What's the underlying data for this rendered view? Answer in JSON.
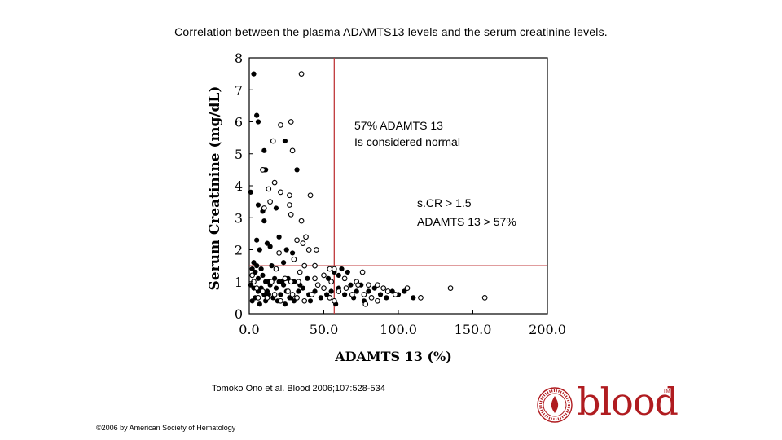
{
  "slide": {
    "title": "Correlation between the plasma ADAMTS13 levels and the serum creatinine levels.",
    "citation": "Tomoko Ono et al. Blood 2006;107:528-534",
    "copyright": "©2006 by American Society of Hematology",
    "logo_text": "blood",
    "logo_tm": "TM"
  },
  "chart_data": {
    "type": "scatter",
    "title": "",
    "xlabel": "ADAMTS 13 (%)",
    "ylabel": "Serum Creatinine (mg/dL)",
    "xlim": [
      0,
      200
    ],
    "ylim": [
      0,
      8
    ],
    "xticks": [
      "0.0",
      "50.0",
      "100.0",
      "150.0",
      "200.0"
    ],
    "yticks": [
      "0",
      "1",
      "2",
      "3",
      "4",
      "5",
      "6",
      "7",
      "8"
    ],
    "grid": false,
    "reference_lines": {
      "x": 57,
      "y": 1.5,
      "color": "#c0393b"
    },
    "annotations": [
      {
        "id": "normal",
        "lines": [
          "57% ADAMTS 13",
          "Is considered normal"
        ]
      },
      {
        "id": "quadrant",
        "lines": [
          "s.CR > 1.5",
          "ADAMTS 13 > 57%"
        ]
      }
    ],
    "series": [
      {
        "marker": "filled-circle",
        "points": [
          [
            3,
            7.5
          ],
          [
            5,
            6.2
          ],
          [
            6,
            6
          ],
          [
            10,
            5.1
          ],
          [
            10,
            4.5
          ],
          [
            11,
            4.5
          ],
          [
            24,
            5.4
          ],
          [
            32,
            4.5
          ],
          [
            1,
            3.8
          ],
          [
            6,
            3.4
          ],
          [
            9,
            3.2
          ],
          [
            10,
            2.9
          ],
          [
            18,
            3.3
          ],
          [
            20,
            2.4
          ],
          [
            5,
            2.3
          ],
          [
            7,
            2.0
          ],
          [
            12,
            2.2
          ],
          [
            14,
            2.1
          ],
          [
            25,
            2.0
          ],
          [
            29,
            1.9
          ],
          [
            3,
            1.6
          ],
          [
            5,
            1.5
          ],
          [
            8,
            1.4
          ],
          [
            15,
            1.5
          ],
          [
            23,
            1.6
          ],
          [
            2,
            1.4
          ],
          [
            4,
            1.3
          ],
          [
            6,
            1.1
          ],
          [
            9,
            1.2
          ],
          [
            11,
            1.0
          ],
          [
            13,
            1.0
          ],
          [
            17,
            1.1
          ],
          [
            20,
            1.0
          ],
          [
            22,
            1.0
          ],
          [
            26,
            1.1
          ],
          [
            30,
            1.0
          ],
          [
            34,
            0.9
          ],
          [
            39,
            1.1
          ],
          [
            1,
            0.9
          ],
          [
            3,
            0.8
          ],
          [
            6,
            0.7
          ],
          [
            8,
            0.8
          ],
          [
            10,
            0.6
          ],
          [
            12,
            0.7
          ],
          [
            14,
            0.9
          ],
          [
            16,
            0.5
          ],
          [
            18,
            0.8
          ],
          [
            21,
            0.6
          ],
          [
            23,
            0.9
          ],
          [
            25,
            0.7
          ],
          [
            27,
            0.5
          ],
          [
            30,
            0.4
          ],
          [
            33,
            0.7
          ],
          [
            36,
            0.8
          ],
          [
            40,
            0.6
          ],
          [
            44,
            0.7
          ],
          [
            48,
            0.5
          ],
          [
            52,
            0.6
          ],
          [
            55,
            0.7
          ],
          [
            60,
            0.8
          ],
          [
            64,
            0.6
          ],
          [
            68,
            0.9
          ],
          [
            72,
            0.7
          ],
          [
            75,
            0.9
          ],
          [
            80,
            0.7
          ],
          [
            84,
            0.8
          ],
          [
            88,
            0.6
          ],
          [
            92,
            0.5
          ],
          [
            96,
            0.7
          ],
          [
            100,
            0.6
          ],
          [
            104,
            0.7
          ],
          [
            110,
            0.5
          ],
          [
            2,
            0.4
          ],
          [
            4,
            0.5
          ],
          [
            7,
            0.3
          ],
          [
            11,
            0.4
          ],
          [
            13,
            0.6
          ],
          [
            19,
            0.4
          ],
          [
            24,
            0.3
          ],
          [
            28,
            0.5
          ],
          [
            41,
            0.4
          ],
          [
            58,
            0.3
          ],
          [
            62,
            1.4
          ],
          [
            66,
            1.3
          ],
          [
            53,
            1.1
          ],
          [
            57,
            1.3
          ],
          [
            60,
            1.2
          ],
          [
            70,
            0.5
          ],
          [
            77,
            0.4
          ]
        ]
      },
      {
        "marker": "open-circle",
        "points": [
          [
            35,
            7.5
          ],
          [
            28,
            6.0
          ],
          [
            21,
            5.9
          ],
          [
            16,
            5.4
          ],
          [
            29,
            5.1
          ],
          [
            9,
            4.5
          ],
          [
            17,
            4.1
          ],
          [
            13,
            3.9
          ],
          [
            21,
            3.8
          ],
          [
            27,
            3.7
          ],
          [
            41,
            3.7
          ],
          [
            10,
            3.3
          ],
          [
            14,
            3.5
          ],
          [
            27,
            3.4
          ],
          [
            28,
            3.1
          ],
          [
            35,
            2.9
          ],
          [
            38,
            2.4
          ],
          [
            32,
            2.3
          ],
          [
            36,
            2.2
          ],
          [
            40,
            2.0
          ],
          [
            45,
            2.0
          ],
          [
            20,
            1.9
          ],
          [
            30,
            1.7
          ],
          [
            18,
            1.4
          ],
          [
            37,
            1.5
          ],
          [
            54,
            1.4
          ],
          [
            57,
            1.4
          ],
          [
            76,
            1.3
          ],
          [
            2,
            1.2
          ],
          [
            15,
            1.0
          ],
          [
            24,
            1.1
          ],
          [
            28,
            1.0
          ],
          [
            33,
            1.0
          ],
          [
            44,
            1.1
          ],
          [
            50,
            1.2
          ],
          [
            55,
            1.0
          ],
          [
            64,
            1.1
          ],
          [
            72,
            1.0
          ],
          [
            80,
            0.9
          ],
          [
            90,
            0.8
          ],
          [
            135,
            0.8
          ],
          [
            5,
            0.8
          ],
          [
            9,
            0.7
          ],
          [
            12,
            0.5
          ],
          [
            17,
            0.6
          ],
          [
            21,
            0.4
          ],
          [
            26,
            0.7
          ],
          [
            29,
            0.6
          ],
          [
            32,
            0.5
          ],
          [
            37,
            0.4
          ],
          [
            42,
            0.6
          ],
          [
            46,
            0.9
          ],
          [
            50,
            0.8
          ],
          [
            54,
            0.5
          ],
          [
            57,
            0.4
          ],
          [
            60,
            0.7
          ],
          [
            65,
            0.8
          ],
          [
            69,
            0.6
          ],
          [
            73,
            0.9
          ],
          [
            77,
            0.6
          ],
          [
            82,
            0.5
          ],
          [
            86,
            0.9
          ],
          [
            93,
            0.7
          ],
          [
            98,
            0.6
          ],
          [
            106,
            0.8
          ],
          [
            115,
            0.5
          ],
          [
            158,
            0.5
          ],
          [
            3,
            1.0
          ],
          [
            6,
            0.5
          ],
          [
            34,
            1.3
          ],
          [
            44,
            1.5
          ],
          [
            78,
            0.3
          ],
          [
            86,
            0.4
          ]
        ]
      }
    ]
  }
}
